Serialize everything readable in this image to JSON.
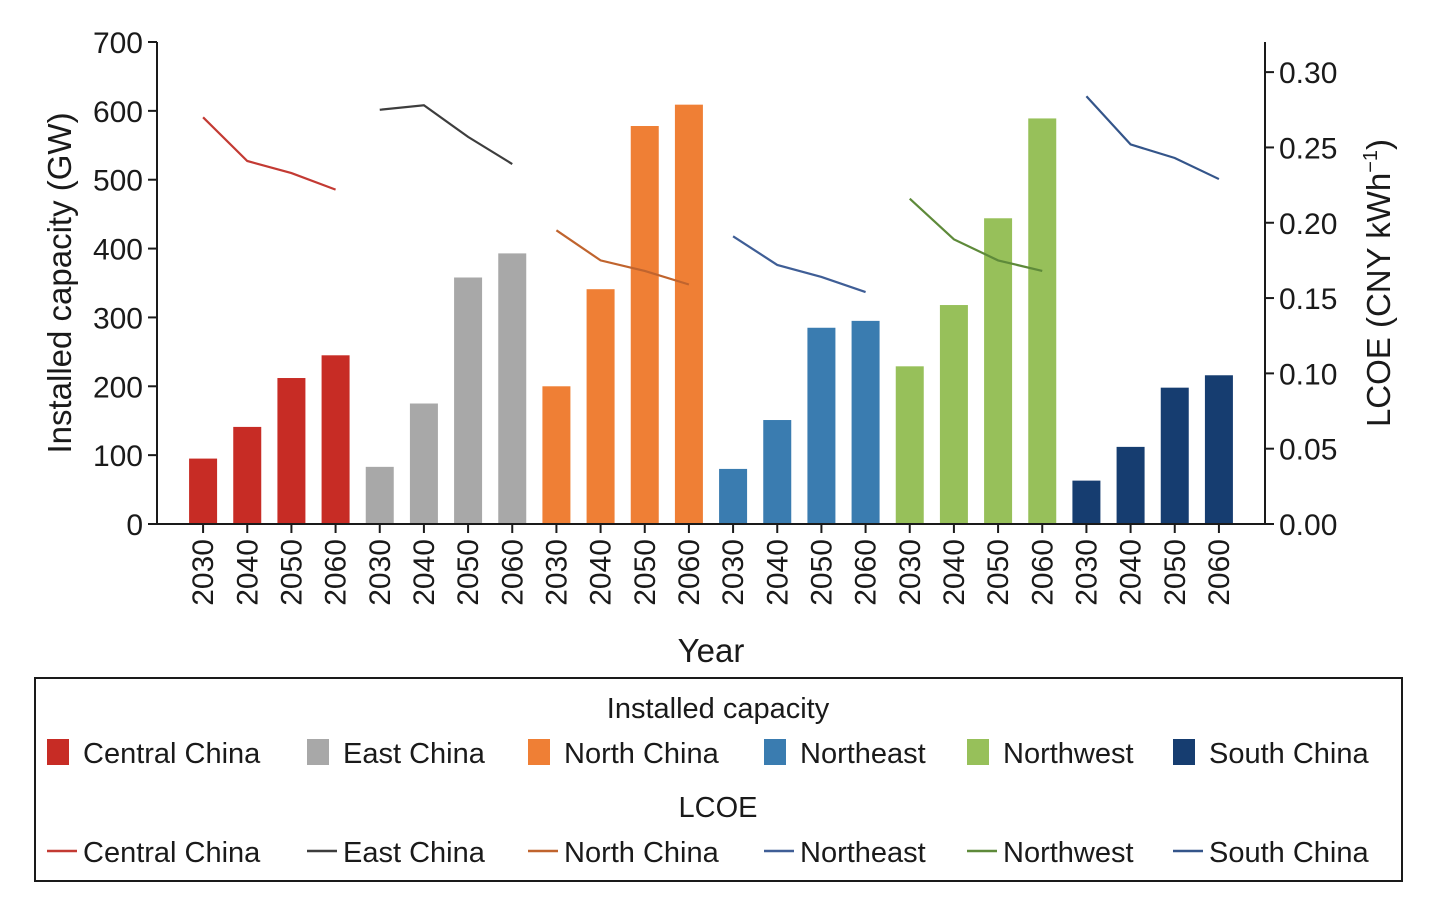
{
  "chart_data": {
    "type": "bar",
    "categories": [
      "2030",
      "2040",
      "2050",
      "2060"
    ],
    "xlabel": "Year",
    "ylabel": "Installed capacity (GW)",
    "y2label": {
      "main": "LCOE (CNY kWh",
      "sup": "−1",
      "close": ")"
    },
    "ylim": [
      0,
      700
    ],
    "y2lim": [
      0,
      0.32
    ],
    "yticks": [
      "0",
      "100",
      "200",
      "300",
      "400",
      "500",
      "600",
      "700"
    ],
    "y2ticks": [
      "0.00",
      "0.05",
      "0.10",
      "0.15",
      "0.20",
      "0.25",
      "0.30"
    ],
    "y2tick_values": [
      0,
      0.05,
      0.1,
      0.15,
      0.2,
      0.25,
      0.3
    ],
    "bar_series": [
      {
        "name": "Central China",
        "color": "#c72c25",
        "values": [
          95,
          141,
          212,
          245
        ]
      },
      {
        "name": "East China",
        "color": "#a8a8a8",
        "values": [
          83,
          175,
          358,
          393
        ]
      },
      {
        "name": "North China",
        "color": "#ef7f35",
        "values": [
          200,
          341,
          578,
          609
        ]
      },
      {
        "name": "Northeast",
        "color": "#3a7cb0",
        "values": [
          80,
          151,
          285,
          295
        ]
      },
      {
        "name": "Northwest",
        "color": "#97c05a",
        "values": [
          229,
          318,
          444,
          589
        ]
      },
      {
        "name": "South China",
        "color": "#163d70",
        "values": [
          63,
          112,
          198,
          216
        ]
      }
    ],
    "line_series": [
      {
        "name": "Central China",
        "color": "#c33a33",
        "values": [
          0.27,
          0.241,
          0.233,
          0.222
        ]
      },
      {
        "name": "East China",
        "color": "#3d3d3d",
        "values": [
          0.275,
          0.278,
          0.257,
          0.239
        ]
      },
      {
        "name": "North China",
        "color": "#c0642e",
        "values": [
          0.195,
          0.175,
          0.168,
          0.159
        ]
      },
      {
        "name": "Northeast",
        "color": "#3f5e96",
        "values": [
          0.191,
          0.172,
          0.164,
          0.154
        ]
      },
      {
        "name": "Northwest",
        "color": "#5e8a3a",
        "values": [
          0.216,
          0.189,
          0.175,
          0.168
        ]
      },
      {
        "name": "South China",
        "color": "#34558a",
        "values": [
          0.284,
          0.252,
          0.243,
          0.229
        ]
      }
    ],
    "legend": {
      "bar_title": "Installed capacity",
      "line_title": "LCOE",
      "placement": "bottom"
    },
    "grid": false
  }
}
